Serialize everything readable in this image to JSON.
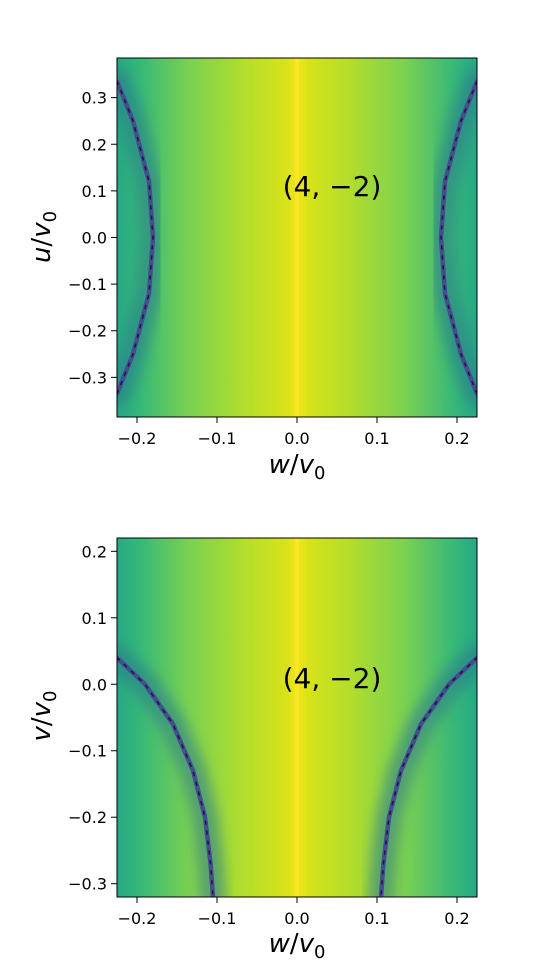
{
  "chart_data": [
    {
      "type": "heatmap",
      "title": "",
      "annotation": "(4, −2)",
      "xlabel": "w/v0",
      "ylabel": "u/v0",
      "xlim": [
        -0.225,
        0.225
      ],
      "ylim": [
        -0.385,
        0.385
      ],
      "xticks": [
        -0.2,
        -0.1,
        0.0,
        0.1,
        0.2
      ],
      "xtick_labels": [
        "−0.2",
        "−0.1",
        "0.0",
        "0.1",
        "0.2"
      ],
      "yticks": [
        -0.3,
        -0.2,
        -0.1,
        0.0,
        0.1,
        0.2,
        0.3
      ],
      "ytick_labels": [
        "−0.3",
        "−0.2",
        "−0.1",
        "0.0",
        "0.1",
        "0.2",
        "0.3"
      ],
      "colormap": "viridis",
      "features": {
        "bright_line_x": 0.0,
        "dark_curves": [
          {
            "points": [
              [
                -0.18,
                0.0
              ],
              [
                -0.185,
                0.12
              ],
              [
                -0.205,
                0.25
              ],
              [
                -0.225,
                0.335
              ]
            ]
          },
          {
            "points": [
              [
                0.18,
                0.0
              ],
              [
                0.185,
                0.12
              ],
              [
                0.205,
                0.25
              ],
              [
                0.225,
                0.335
              ]
            ]
          }
        ]
      }
    },
    {
      "type": "heatmap",
      "title": "",
      "annotation": "(4, −2)",
      "xlabel": "w/v0",
      "ylabel": "v/v0",
      "xlim": [
        -0.225,
        0.225
      ],
      "ylim": [
        -0.32,
        0.22
      ],
      "xticks": [
        -0.2,
        -0.1,
        0.0,
        0.1,
        0.2
      ],
      "xtick_labels": [
        "−0.2",
        "−0.1",
        "0.0",
        "0.1",
        "0.2"
      ],
      "yticks": [
        -0.3,
        -0.2,
        -0.1,
        0.0,
        0.1,
        0.2
      ],
      "ytick_labels": [
        "−0.3",
        "−0.2",
        "−0.1",
        "0.0",
        "0.1",
        "0.2"
      ],
      "colormap": "viridis",
      "features": {
        "bright_line_x": 0.0,
        "dark_curves": [
          {
            "points": [
              [
                -0.225,
                0.04
              ],
              [
                -0.19,
                0.0
              ],
              [
                -0.155,
                -0.06
              ],
              [
                -0.13,
                -0.13
              ],
              [
                -0.115,
                -0.2
              ],
              [
                -0.108,
                -0.27
              ],
              [
                -0.105,
                -0.32
              ]
            ]
          },
          {
            "points": [
              [
                0.225,
                0.04
              ],
              [
                0.19,
                0.0
              ],
              [
                0.155,
                -0.06
              ],
              [
                0.13,
                -0.13
              ],
              [
                0.115,
                -0.2
              ],
              [
                0.108,
                -0.27
              ],
              [
                0.105,
                -0.32
              ]
            ]
          }
        ]
      }
    }
  ]
}
